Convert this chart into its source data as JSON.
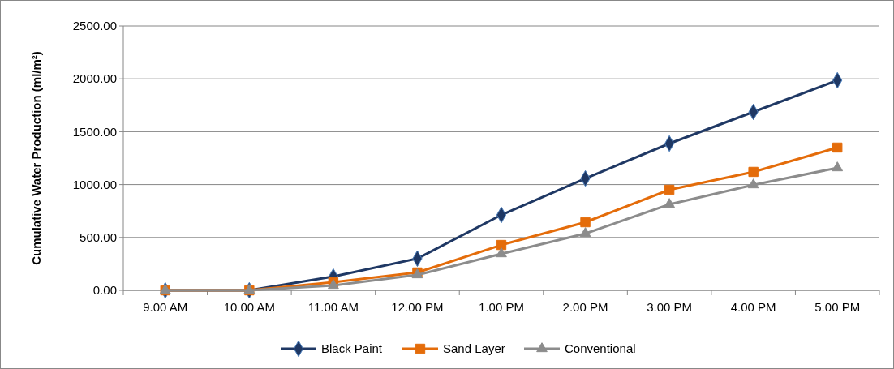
{
  "chart_data": {
    "type": "line",
    "ylabel": "Cumulative Water Production (ml/m²)",
    "categories": [
      "9.00 AM",
      "10.00 AM",
      "11.00 AM",
      "12.00 PM",
      "1.00 PM",
      "2.00 PM",
      "3.00 PM",
      "4.00 PM",
      "5.00 PM"
    ],
    "series": [
      {
        "name": "Black Paint",
        "color": "#1f3864",
        "marker": "diamond",
        "values": [
          0,
          0,
          130,
          300,
          713,
          1058,
          1388,
          1687,
          1986
        ]
      },
      {
        "name": "Sand Layer",
        "color": "#e46c0a",
        "marker": "square",
        "values": [
          0,
          0,
          77,
          169,
          429,
          644,
          951,
          1120,
          1350
        ]
      },
      {
        "name": "Conventional",
        "color": "#8c8c8c",
        "marker": "triangle",
        "values": [
          0,
          0,
          46,
          146,
          345,
          537,
          813,
          997,
          1158
        ]
      }
    ],
    "ylim": [
      0,
      2500
    ],
    "yticks": [
      {
        "value": 0,
        "label": "0.00"
      },
      {
        "value": 500,
        "label": "500.00"
      },
      {
        "value": 1000,
        "label": "1000.00"
      },
      {
        "value": 1500,
        "label": "1500.00"
      },
      {
        "value": 2000,
        "label": "2000.00"
      },
      {
        "value": 2500,
        "label": "2500.00"
      }
    ],
    "grid": "y",
    "legend": "bottom"
  }
}
